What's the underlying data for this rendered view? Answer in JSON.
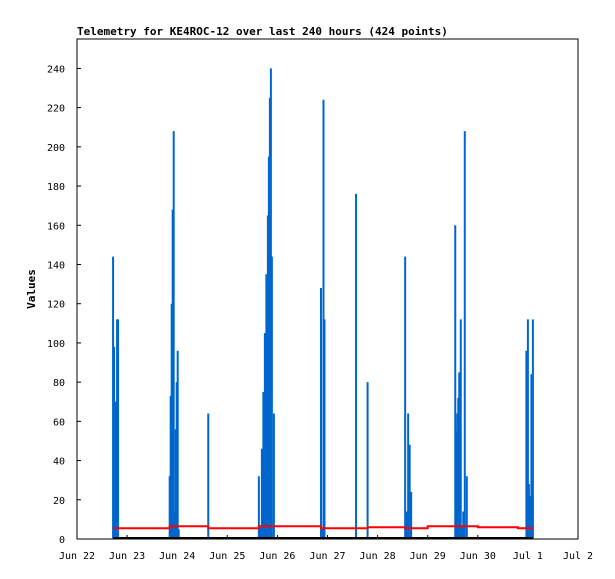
{
  "chart_data": {
    "type": "line",
    "title": "Telemetry for KE4ROC-12 over last 240 hours (424 points)",
    "xlabel": "",
    "ylabel": "Values",
    "x_tick_labels": [
      "Jun 22",
      "Jun 23",
      "Jun 24",
      "Jun 25",
      "Jun 26",
      "Jun 27",
      "Jun 28",
      "Jun 29",
      "Jun 30",
      "Jul 1",
      "Jul 2"
    ],
    "x_domain_days": [
      0,
      10
    ],
    "ylim": [
      0,
      255
    ],
    "y_ticks": [
      0,
      20,
      40,
      60,
      80,
      100,
      120,
      140,
      160,
      180,
      200,
      220,
      240
    ],
    "grid": false,
    "legend": "none",
    "series": [
      {
        "color": "#0066cc",
        "style": "impulses",
        "points": [
          [
            0.72,
            144
          ],
          [
            0.74,
            98
          ],
          [
            0.76,
            43
          ],
          [
            0.77,
            70
          ],
          [
            0.78,
            8
          ],
          [
            0.8,
            112
          ],
          [
            0.82,
            112
          ],
          [
            1.85,
            32
          ],
          [
            1.87,
            73
          ],
          [
            1.89,
            120
          ],
          [
            1.91,
            168
          ],
          [
            1.93,
            208
          ],
          [
            1.95,
            14
          ],
          [
            1.97,
            56
          ],
          [
            1.99,
            80
          ],
          [
            2.01,
            96
          ],
          [
            2.03,
            5
          ],
          [
            2.62,
            64
          ],
          [
            3.63,
            32
          ],
          [
            3.66,
            6
          ],
          [
            3.69,
            46
          ],
          [
            3.72,
            75
          ],
          [
            3.75,
            105
          ],
          [
            3.78,
            135
          ],
          [
            3.81,
            165
          ],
          [
            3.83,
            195
          ],
          [
            3.85,
            225
          ],
          [
            3.87,
            240
          ],
          [
            3.89,
            144
          ],
          [
            3.93,
            64
          ],
          [
            4.87,
            128
          ],
          [
            4.9,
            6
          ],
          [
            4.92,
            224
          ],
          [
            4.94,
            112
          ],
          [
            5.57,
            176
          ],
          [
            5.8,
            80
          ],
          [
            6.55,
            144
          ],
          [
            6.58,
            14
          ],
          [
            6.61,
            64
          ],
          [
            6.64,
            48
          ],
          [
            6.67,
            24
          ],
          [
            7.55,
            160
          ],
          [
            7.57,
            55
          ],
          [
            7.59,
            64
          ],
          [
            7.61,
            72
          ],
          [
            7.63,
            85
          ],
          [
            7.66,
            112
          ],
          [
            7.68,
            6
          ],
          [
            7.71,
            14
          ],
          [
            7.74,
            208
          ],
          [
            7.78,
            32
          ],
          [
            8.97,
            96
          ],
          [
            9.0,
            112
          ],
          [
            9.02,
            28
          ],
          [
            9.04,
            22
          ],
          [
            9.07,
            84
          ],
          [
            9.1,
            112
          ]
        ]
      },
      {
        "color": "#ff0000",
        "style": "steps",
        "points": [
          [
            0.72,
            5.5
          ],
          [
            1.85,
            6.5
          ],
          [
            2.62,
            5.5
          ],
          [
            3.63,
            6.5
          ],
          [
            4.87,
            5.5
          ],
          [
            5.8,
            6.0
          ],
          [
            6.55,
            5.5
          ],
          [
            7.0,
            6.5
          ],
          [
            8.0,
            6.0
          ],
          [
            8.8,
            5.5
          ],
          [
            9.1,
            5.5
          ]
        ]
      },
      {
        "color": "#000000",
        "style": "line",
        "points": [
          [
            0.72,
            0.5
          ],
          [
            9.1,
            0.5
          ]
        ]
      }
    ]
  }
}
